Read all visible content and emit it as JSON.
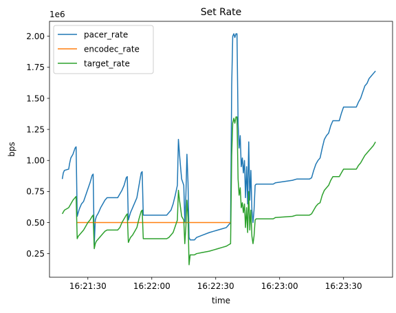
{
  "chart_data": {
    "type": "line",
    "title": "Set Rate",
    "xlabel": "time",
    "ylabel": "bps",
    "y_offset_text": "1e6",
    "xlim": [
      "16:21:12",
      "16:23:53"
    ],
    "ylim": [
      0.06,
      2.12
    ],
    "xticks": [
      "16:21:30",
      "16:22:00",
      "16:22:30",
      "16:23:00",
      "16:23:30"
    ],
    "yticks": [
      0.25,
      0.5,
      0.75,
      1.0,
      1.25,
      1.5,
      1.75,
      2.0
    ],
    "ytick_labels": [
      "0.25",
      "0.50",
      "0.75",
      "1.00",
      "1.25",
      "1.50",
      "1.75",
      "2.00"
    ],
    "grid": false,
    "legend_position": "top-left",
    "series": [
      {
        "name": "pacer_rate",
        "color": "#1f77b4",
        "points": [
          [
            "16:21:18",
            0.85
          ],
          [
            "16:21:18.5",
            0.9
          ],
          [
            "16:21:19",
            0.92
          ],
          [
            "16:21:21",
            0.93
          ],
          [
            "16:21:21.5",
            0.98
          ],
          [
            "16:21:22",
            1.02
          ],
          [
            "16:21:23",
            1.05
          ],
          [
            "16:21:24",
            1.1
          ],
          [
            "16:21:24.5",
            1.11
          ],
          [
            "16:21:25",
            0.55
          ],
          [
            "16:21:25.5",
            0.58
          ],
          [
            "16:21:26",
            0.61
          ],
          [
            "16:21:27",
            0.65
          ],
          [
            "16:21:28",
            0.67
          ],
          [
            "16:21:29",
            0.72
          ],
          [
            "16:21:30",
            0.77
          ],
          [
            "16:21:31",
            0.82
          ],
          [
            "16:21:32",
            0.88
          ],
          [
            "16:21:32.5",
            0.89
          ],
          [
            "16:21:33",
            0.32
          ],
          [
            "16:21:33.5",
            0.52
          ],
          [
            "16:21:34",
            0.55
          ],
          [
            "16:21:35",
            0.58
          ],
          [
            "16:21:36",
            0.62
          ],
          [
            "16:21:37",
            0.65
          ],
          [
            "16:21:38",
            0.68
          ],
          [
            "16:21:39",
            0.7
          ],
          [
            "16:21:44",
            0.7
          ],
          [
            "16:21:45",
            0.73
          ],
          [
            "16:21:46",
            0.76
          ],
          [
            "16:21:47",
            0.8
          ],
          [
            "16:21:48",
            0.86
          ],
          [
            "16:21:48.5",
            0.87
          ],
          [
            "16:21:49",
            0.52
          ],
          [
            "16:21:49.5",
            0.55
          ],
          [
            "16:21:50",
            0.58
          ],
          [
            "16:21:51",
            0.62
          ],
          [
            "16:21:52",
            0.66
          ],
          [
            "16:21:53",
            0.7
          ],
          [
            "16:21:54",
            0.8
          ],
          [
            "16:21:55",
            0.9
          ],
          [
            "16:21:55.5",
            0.91
          ],
          [
            "16:21:56",
            0.56
          ],
          [
            "16:22:07",
            0.56
          ],
          [
            "16:22:08",
            0.58
          ],
          [
            "16:22:09",
            0.6
          ],
          [
            "16:22:10",
            0.65
          ],
          [
            "16:22:11",
            0.72
          ],
          [
            "16:22:12",
            0.8
          ],
          [
            "16:22:12.5",
            1.17
          ],
          [
            "16:22:13",
            1.05
          ],
          [
            "16:22:13.5",
            0.95
          ],
          [
            "16:22:14",
            0.85
          ],
          [
            "16:22:15",
            0.8
          ],
          [
            "16:22:15.5",
            0.5
          ],
          [
            "16:22:16",
            0.72
          ],
          [
            "16:22:16.5",
            1.05
          ],
          [
            "16:22:17",
            0.82
          ],
          [
            "16:22:17.5",
            0.38
          ],
          [
            "16:22:18",
            0.36
          ],
          [
            "16:22:20",
            0.36
          ],
          [
            "16:22:21",
            0.38
          ],
          [
            "16:22:24",
            0.4
          ],
          [
            "16:22:27",
            0.42
          ],
          [
            "16:22:29",
            0.43
          ],
          [
            "16:22:31",
            0.44
          ],
          [
            "16:22:33",
            0.45
          ],
          [
            "16:22:35",
            0.46
          ],
          [
            "16:22:36",
            0.48
          ],
          [
            "16:22:37",
            0.5
          ],
          [
            "16:22:37.5",
            1.6
          ],
          [
            "16:22:38",
            2.0
          ],
          [
            "16:22:38.5",
            2.02
          ],
          [
            "16:22:39",
            1.99
          ],
          [
            "16:22:39.5",
            2.02
          ],
          [
            "16:22:40",
            2.02
          ],
          [
            "16:22:40.5",
            1.3
          ],
          [
            "16:22:41",
            1.1
          ],
          [
            "16:22:41.5",
            1.2
          ],
          [
            "16:22:42",
            0.95
          ],
          [
            "16:22:42.5",
            1.02
          ],
          [
            "16:22:43",
            0.9
          ],
          [
            "16:22:43.5",
            1.0
          ],
          [
            "16:22:44",
            0.7
          ],
          [
            "16:22:44.5",
            0.95
          ],
          [
            "16:22:45",
            0.65
          ],
          [
            "16:22:45.5",
            1.15
          ],
          [
            "16:22:46",
            0.68
          ],
          [
            "16:22:46.5",
            0.92
          ],
          [
            "16:22:47",
            0.6
          ],
          [
            "16:22:47.5",
            0.5
          ],
          [
            "16:22:48",
            0.6
          ],
          [
            "16:22:48.5",
            0.8
          ],
          [
            "16:22:49",
            0.81
          ],
          [
            "16:22:57",
            0.81
          ],
          [
            "16:22:58",
            0.82
          ],
          [
            "16:23:06",
            0.84
          ],
          [
            "16:23:08",
            0.85
          ],
          [
            "16:23:14",
            0.85
          ],
          [
            "16:23:15",
            0.86
          ],
          [
            "16:23:16",
            0.92
          ],
          [
            "16:23:17",
            0.97
          ],
          [
            "16:23:18",
            1.0
          ],
          [
            "16:23:19",
            1.02
          ],
          [
            "16:23:20",
            1.1
          ],
          [
            "16:23:21",
            1.17
          ],
          [
            "16:23:22",
            1.2
          ],
          [
            "16:23:23",
            1.22
          ],
          [
            "16:23:24",
            1.28
          ],
          [
            "16:23:25",
            1.32
          ],
          [
            "16:23:28",
            1.32
          ],
          [
            "16:23:29",
            1.38
          ],
          [
            "16:23:30",
            1.43
          ],
          [
            "16:23:36",
            1.43
          ],
          [
            "16:23:37",
            1.47
          ],
          [
            "16:23:38",
            1.5
          ],
          [
            "16:23:39",
            1.55
          ],
          [
            "16:23:40",
            1.6
          ],
          [
            "16:23:41",
            1.62
          ],
          [
            "16:23:42",
            1.66
          ],
          [
            "16:23:43",
            1.68
          ],
          [
            "16:23:44",
            1.7
          ],
          [
            "16:23:45",
            1.72
          ]
        ]
      },
      {
        "name": "encodec_rate",
        "color": "#ff7f0e",
        "points": [
          [
            "16:21:25",
            0.5
          ],
          [
            "16:22:37",
            0.5
          ]
        ]
      },
      {
        "name": "target_rate",
        "color": "#2ca02c",
        "points": [
          [
            "16:21:18",
            0.57
          ],
          [
            "16:21:19",
            0.6
          ],
          [
            "16:21:21",
            0.62
          ],
          [
            "16:21:22",
            0.65
          ],
          [
            "16:21:23",
            0.68
          ],
          [
            "16:21:24",
            0.7
          ],
          [
            "16:21:24.5",
            0.71
          ],
          [
            "16:21:25",
            0.37
          ],
          [
            "16:21:25.5",
            0.39
          ],
          [
            "16:21:26",
            0.4
          ],
          [
            "16:21:27",
            0.42
          ],
          [
            "16:21:28",
            0.44
          ],
          [
            "16:21:29",
            0.47
          ],
          [
            "16:21:30",
            0.5
          ],
          [
            "16:21:31",
            0.52
          ],
          [
            "16:21:32",
            0.55
          ],
          [
            "16:21:32.5",
            0.56
          ],
          [
            "16:21:33",
            0.29
          ],
          [
            "16:21:33.5",
            0.33
          ],
          [
            "16:21:34",
            0.35
          ],
          [
            "16:21:35",
            0.37
          ],
          [
            "16:21:36",
            0.39
          ],
          [
            "16:21:37",
            0.41
          ],
          [
            "16:21:38",
            0.43
          ],
          [
            "16:21:39",
            0.44
          ],
          [
            "16:21:44",
            0.44
          ],
          [
            "16:21:45",
            0.46
          ],
          [
            "16:21:46",
            0.5
          ],
          [
            "16:21:47",
            0.53
          ],
          [
            "16:21:48",
            0.56
          ],
          [
            "16:21:48.5",
            0.57
          ],
          [
            "16:21:49",
            0.34
          ],
          [
            "16:21:49.5",
            0.36
          ],
          [
            "16:21:50",
            0.38
          ],
          [
            "16:21:51",
            0.4
          ],
          [
            "16:21:52",
            0.43
          ],
          [
            "16:21:53",
            0.46
          ],
          [
            "16:21:54",
            0.53
          ],
          [
            "16:21:55",
            0.59
          ],
          [
            "16:21:55.5",
            0.6
          ],
          [
            "16:21:56",
            0.37
          ],
          [
            "16:22:07",
            0.37
          ],
          [
            "16:22:08",
            0.38
          ],
          [
            "16:22:09",
            0.4
          ],
          [
            "16:22:10",
            0.42
          ],
          [
            "16:22:11",
            0.47
          ],
          [
            "16:22:12",
            0.52
          ],
          [
            "16:22:12.5",
            0.76
          ],
          [
            "16:22:13",
            0.68
          ],
          [
            "16:22:13.5",
            0.62
          ],
          [
            "16:22:14",
            0.55
          ],
          [
            "16:22:15",
            0.52
          ],
          [
            "16:22:15.5",
            0.33
          ],
          [
            "16:22:16",
            0.47
          ],
          [
            "16:22:16.5",
            0.68
          ],
          [
            "16:22:17",
            0.54
          ],
          [
            "16:22:17.5",
            0.16
          ],
          [
            "16:22:18",
            0.24
          ],
          [
            "16:22:20",
            0.24
          ],
          [
            "16:22:21",
            0.25
          ],
          [
            "16:22:24",
            0.26
          ],
          [
            "16:22:27",
            0.27
          ],
          [
            "16:22:29",
            0.28
          ],
          [
            "16:22:31",
            0.29
          ],
          [
            "16:22:33",
            0.3
          ],
          [
            "16:22:35",
            0.31
          ],
          [
            "16:22:36",
            0.32
          ],
          [
            "16:22:37",
            0.33
          ],
          [
            "16:22:37.5",
            1.04
          ],
          [
            "16:22:38",
            1.3
          ],
          [
            "16:22:38.5",
            1.34
          ],
          [
            "16:22:39",
            1.3
          ],
          [
            "16:22:39.5",
            1.35
          ],
          [
            "16:22:40",
            1.35
          ],
          [
            "16:22:40.5",
            0.85
          ],
          [
            "16:22:41",
            0.72
          ],
          [
            "16:22:41.5",
            0.78
          ],
          [
            "16:22:42",
            0.62
          ],
          [
            "16:22:42.5",
            0.66
          ],
          [
            "16:22:43",
            0.58
          ],
          [
            "16:22:43.5",
            0.65
          ],
          [
            "16:22:44",
            0.46
          ],
          [
            "16:22:44.5",
            0.62
          ],
          [
            "16:22:45",
            0.42
          ],
          [
            "16:22:45.5",
            0.75
          ],
          [
            "16:22:46",
            0.44
          ],
          [
            "16:22:46.5",
            0.6
          ],
          [
            "16:22:47",
            0.39
          ],
          [
            "16:22:47.5",
            0.33
          ],
          [
            "16:22:48",
            0.39
          ],
          [
            "16:22:48.5",
            0.52
          ],
          [
            "16:22:49",
            0.53
          ],
          [
            "16:22:57",
            0.53
          ],
          [
            "16:22:58",
            0.54
          ],
          [
            "16:23:06",
            0.55
          ],
          [
            "16:23:08",
            0.56
          ],
          [
            "16:23:14",
            0.56
          ],
          [
            "16:23:15",
            0.57
          ],
          [
            "16:23:16",
            0.6
          ],
          [
            "16:23:17",
            0.63
          ],
          [
            "16:23:18",
            0.65
          ],
          [
            "16:23:19",
            0.66
          ],
          [
            "16:23:20",
            0.72
          ],
          [
            "16:23:21",
            0.76
          ],
          [
            "16:23:22",
            0.78
          ],
          [
            "16:23:23",
            0.8
          ],
          [
            "16:23:24",
            0.84
          ],
          [
            "16:23:25",
            0.87
          ],
          [
            "16:23:28",
            0.87
          ],
          [
            "16:23:29",
            0.9
          ],
          [
            "16:23:30",
            0.93
          ],
          [
            "16:23:36",
            0.93
          ],
          [
            "16:23:37",
            0.96
          ],
          [
            "16:23:38",
            0.98
          ],
          [
            "16:23:39",
            1.01
          ],
          [
            "16:23:40",
            1.04
          ],
          [
            "16:23:41",
            1.06
          ],
          [
            "16:23:42",
            1.08
          ],
          [
            "16:23:43",
            1.1
          ],
          [
            "16:23:44",
            1.12
          ],
          [
            "16:23:45",
            1.15
          ]
        ]
      }
    ]
  }
}
